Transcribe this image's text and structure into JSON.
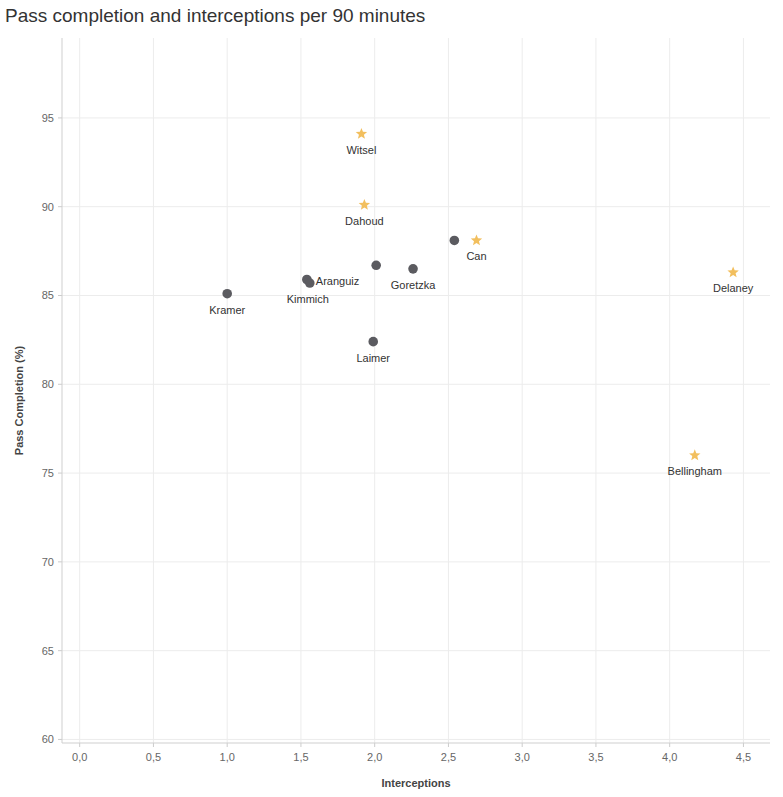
{
  "chart_data": {
    "type": "scatter",
    "title": "Pass completion and interceptions per 90 minutes",
    "x_label": "Interceptions",
    "y_label": "Pass Completion (%)",
    "xlim": [
      -0.12,
      4.68
    ],
    "ylim": [
      59.8,
      99.5
    ],
    "xticks": [
      {
        "value": 0,
        "label": "0,0"
      },
      {
        "value": 0.5,
        "label": "0,5"
      },
      {
        "value": 1,
        "label": "1,0"
      },
      {
        "value": 1.5,
        "label": "1,5"
      },
      {
        "value": 2,
        "label": "2,0"
      },
      {
        "value": 2.5,
        "label": "2,5"
      },
      {
        "value": 3,
        "label": "3,0"
      },
      {
        "value": 3.5,
        "label": "3,5"
      },
      {
        "value": 4,
        "label": "4,0"
      },
      {
        "value": 4.5,
        "label": "4,5"
      }
    ],
    "yticks": [
      60,
      65,
      70,
      75,
      80,
      85,
      90,
      95
    ],
    "grid": true,
    "series": [
      {
        "marker": "star",
        "color": "#f2bf5e",
        "x": [
          1.91,
          1.93,
          2.69,
          4.43,
          4.17
        ],
        "values": [
          94.1,
          90.1,
          88.1,
          86.3,
          76.0
        ],
        "labels": [
          "Witsel",
          "Dahoud",
          "Can",
          "Delaney",
          "Bellingham"
        ]
      },
      {
        "marker": "circle",
        "color": "#5b5b60",
        "x": [
          1.0,
          1.54,
          1.56,
          2.01,
          1.99,
          2.26,
          2.54
        ],
        "values": [
          85.1,
          85.9,
          85.7,
          86.7,
          82.4,
          86.5,
          88.1
        ],
        "labels": [
          "Kramer",
          "Aranguiz",
          "Kimmich",
          null,
          "Laimer",
          "Goretzka",
          null
        ]
      }
    ]
  }
}
